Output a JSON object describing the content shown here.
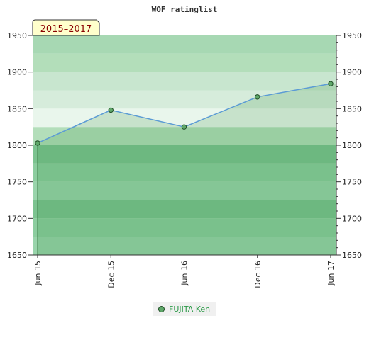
{
  "chart_data": {
    "type": "area",
    "title": "WOF ratinglist",
    "badge": "2015–2017",
    "xlabel": "",
    "ylabel": "",
    "x_tick_labels": [
      "Jun 15",
      "Dec 15",
      "Jun 16",
      "Dec 16",
      "Jun 17"
    ],
    "y_ticks": [
      1650,
      1700,
      1750,
      1800,
      1850,
      1900,
      1950
    ],
    "ylim": [
      1650,
      1950
    ],
    "grid": true,
    "legend_position": "bottom",
    "series": [
      {
        "name": "FUJITA Ken",
        "x": [
          "Jun 15",
          "Dec 15",
          "Jun 16",
          "Dec 16",
          "Jun 17"
        ],
        "values": [
          1803,
          1848,
          1825,
          1866,
          1884
        ]
      }
    ],
    "colors": {
      "line": "#5b9bd5",
      "marker_fill": "#5fa86a",
      "marker_stroke": "#1f4d25",
      "band_colors": [
        "#99d4ab",
        "#8ccd9f",
        "#7cc390",
        "#99d4ab",
        "#8ccd9f",
        "#7cc390",
        "#b3deba",
        "#e9f6ec",
        "#d6ecdb",
        "#c8e6cf",
        "#b3deba",
        "#a7d8b3"
      ],
      "legend_text": "#2e9b4a"
    }
  }
}
